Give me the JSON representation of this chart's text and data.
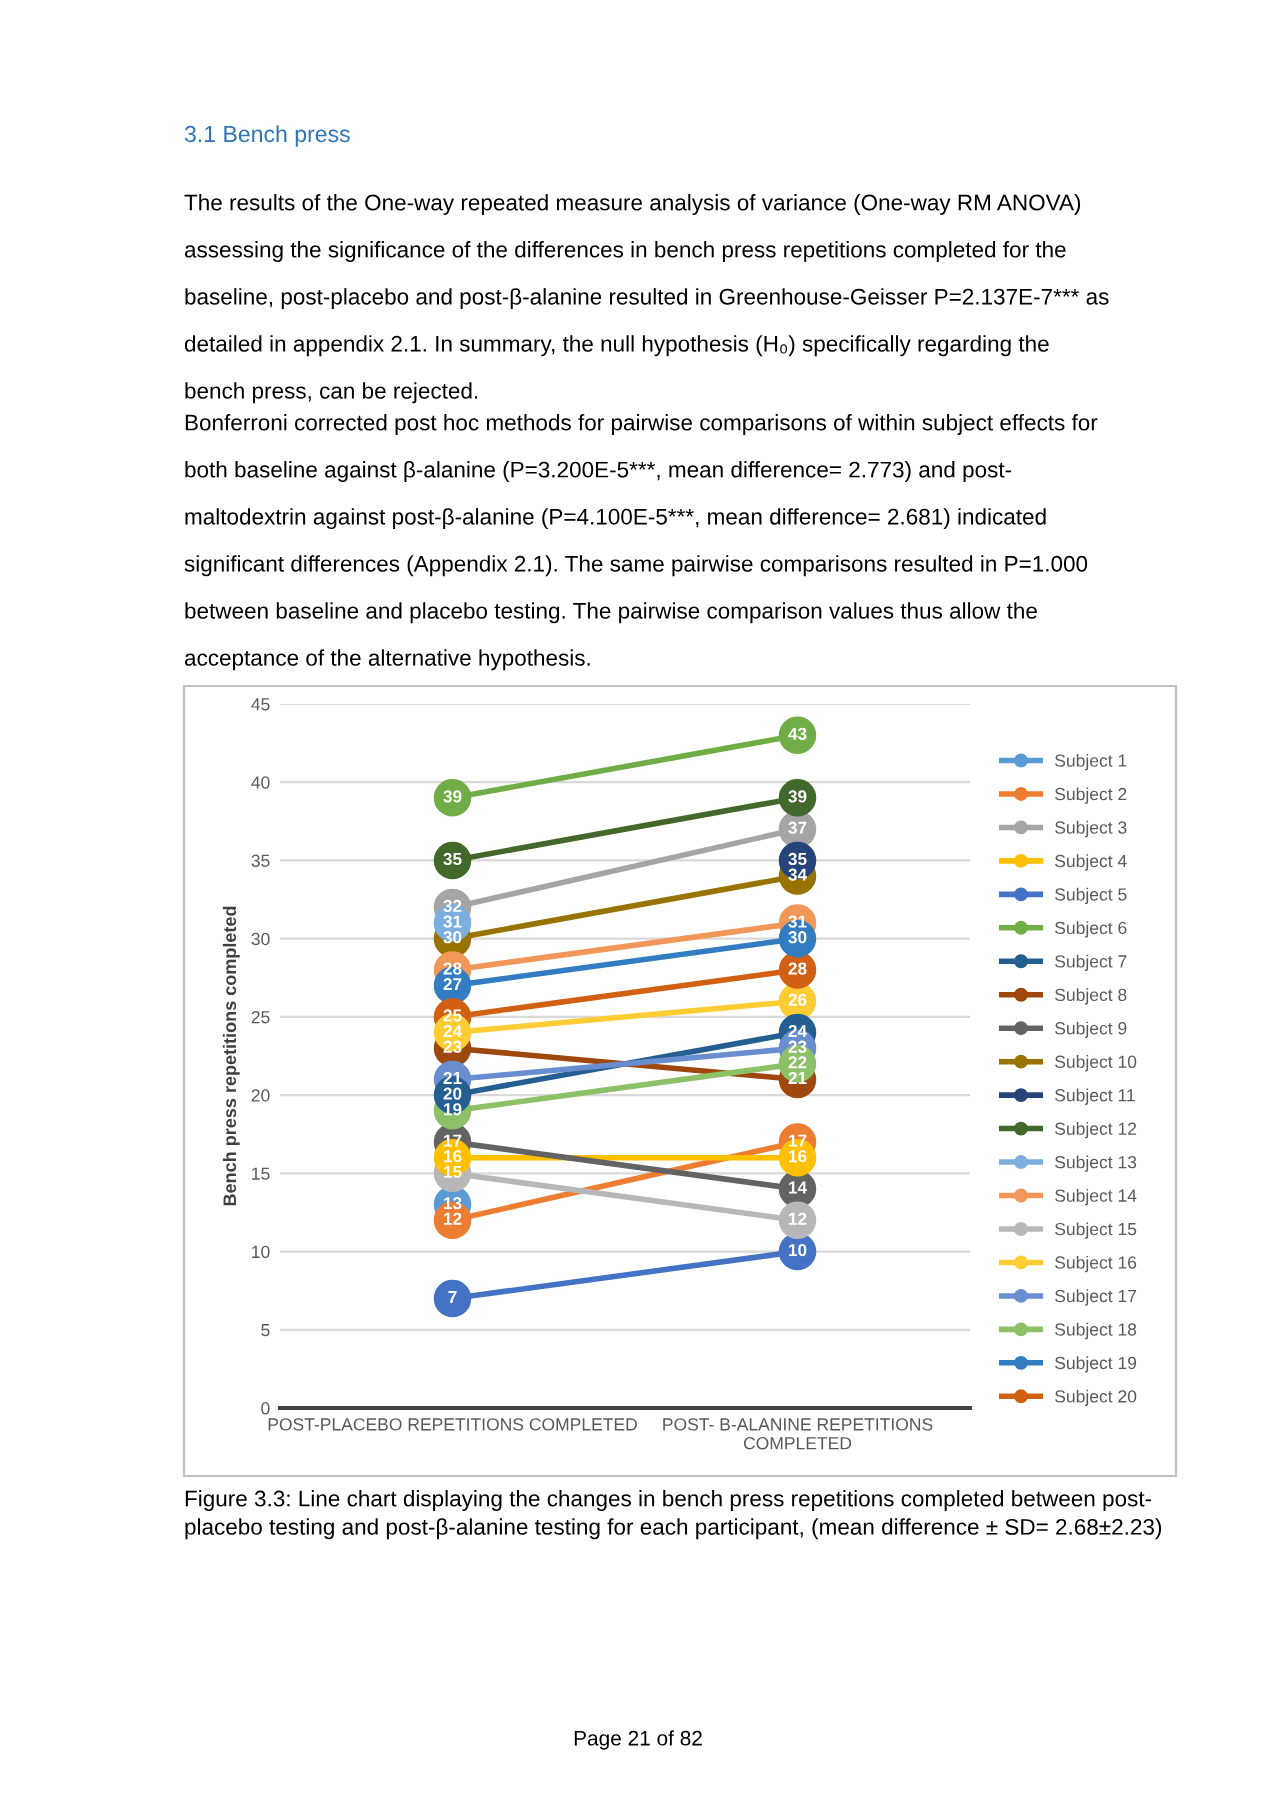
{
  "chart_data": {
    "type": "line",
    "title": "3.1 Bench press",
    "annotations": [
      "The results of the One-way repeated measure analysis of variance (One-way RM ANOVA)\nassessing the significance of the differences in bench press repetitions completed for the\nbaseline, post-placebo and post-β-alanine resulted in Greenhouse-Geisser P=2.137E-7*** as\ndetailed in appendix 2.1. In summary, the null hypothesis (H₀) specifically regarding the\nbench press, can be rejected.",
      "Bonferroni corrected post hoc methods for pairwise comparisons of within subject effects for\nboth baseline against β-alanine (P=3.200E-5***, mean difference= 2.773) and post-\nmaltodextrin against post-β-alanine (P=4.100E-5***, mean difference= 2.681) indicated\nsignificant differences (Appendix 2.1). The same pairwise comparisons resulted in P=1.000\nbetween baseline and placebo testing. The pairwise comparison values thus allow the\nacceptance of the alternative hypothesis.",
      "Figure 3.3: Line chart displaying the changes in bench press repetitions completed between post-\nplacebo testing and post-β-alanine testing for each participant, (mean difference ± SD= 2.68±2.23)",
      "Page 21 of 82"
    ],
    "ylabel": "Bench press repetitions completed",
    "categories": [
      "POST-PLACEBO REPETITIONS COMPLETED",
      "POST- B-ALANINE REPETITIONS\nCOMPLETED"
    ],
    "ylim": [
      0,
      45
    ],
    "yticks": [
      0,
      5,
      10,
      15,
      20,
      25,
      30,
      35,
      40,
      45
    ],
    "grid": "y",
    "legend": "right",
    "marker": "circle",
    "data_labels": true,
    "series": [
      {
        "name": "Subject 1",
        "color": "#5b9bd5",
        "values": [
          13,
          null
        ]
      },
      {
        "name": "Subject 2",
        "color": "#ed7d31",
        "values": [
          12,
          17
        ]
      },
      {
        "name": "Subject 3",
        "color": "#a5a5a5",
        "values": [
          32,
          37
        ]
      },
      {
        "name": "Subject 4",
        "color": "#ffc000",
        "values": [
          16,
          16
        ]
      },
      {
        "name": "Subject 5",
        "color": "#4472c4",
        "values": [
          7,
          10
        ]
      },
      {
        "name": "Subject 6",
        "color": "#70ad47",
        "values": [
          39,
          43
        ]
      },
      {
        "name": "Subject 7",
        "color": "#255e91",
        "values": [
          20,
          24
        ]
      },
      {
        "name": "Subject 8",
        "color": "#9e480e",
        "values": [
          23,
          21
        ]
      },
      {
        "name": "Subject 9",
        "color": "#636363",
        "values": [
          17,
          14
        ]
      },
      {
        "name": "Subject 10",
        "color": "#997300",
        "values": [
          30,
          34
        ]
      },
      {
        "name": "Subject 11",
        "color": "#264478",
        "values": [
          null,
          35
        ]
      },
      {
        "name": "Subject 12",
        "color": "#43682b",
        "values": [
          35,
          39
        ]
      },
      {
        "name": "Subject 13",
        "color": "#7cafdd",
        "values": [
          31,
          null
        ]
      },
      {
        "name": "Subject 14",
        "color": "#f1975a",
        "values": [
          28,
          31
        ]
      },
      {
        "name": "Subject 15",
        "color": "#b7b7b7",
        "values": [
          15,
          12
        ]
      },
      {
        "name": "Subject 16",
        "color": "#ffcd33",
        "values": [
          24,
          26
        ]
      },
      {
        "name": "Subject 17",
        "color": "#698ed0",
        "values": [
          21,
          23
        ]
      },
      {
        "name": "Subject 18",
        "color": "#8cc168",
        "values": [
          19,
          22
        ]
      },
      {
        "name": "Subject 19",
        "color": "#327dc2",
        "values": [
          27,
          30
        ]
      },
      {
        "name": "Subject 20",
        "color": "#d26012",
        "values": [
          25,
          28
        ]
      }
    ]
  }
}
